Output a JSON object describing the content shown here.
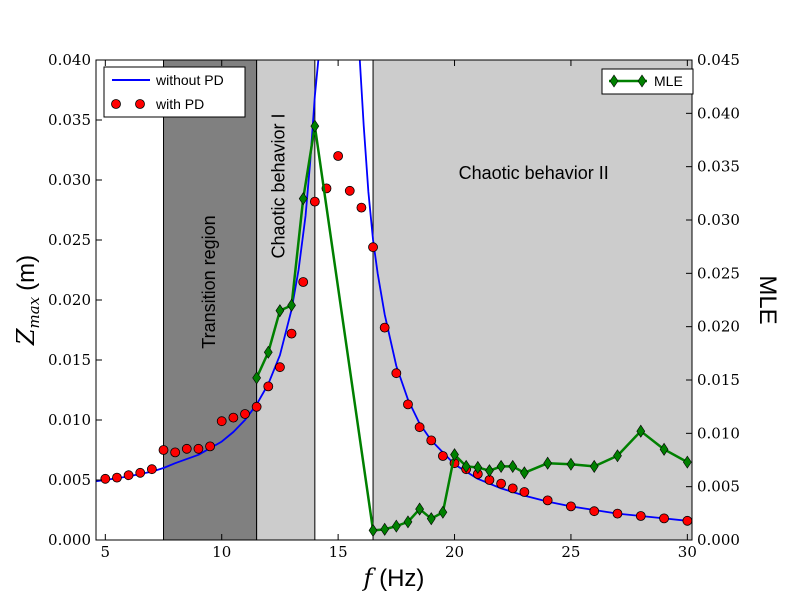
{
  "chart_data": {
    "type": "line",
    "title": "",
    "xlabel": "f (Hz)",
    "xlabel_parts": {
      "symbol": "f",
      "unit": "(Hz)"
    },
    "ylabel_left": "Zmax (m)",
    "ylabel_left_parts": {
      "symbol": "Z",
      "subscript": "max",
      "unit": "(m)"
    },
    "ylabel_right": "MLE",
    "xlim": [
      4.6,
      30.2
    ],
    "ylim_left": [
      0.0,
      0.04
    ],
    "ylim_right": [
      0.0,
      0.045
    ],
    "x_ticks": [
      5,
      10,
      15,
      20,
      25,
      30
    ],
    "y_left_ticks": [
      "0.000",
      "0.005",
      "0.010",
      "0.015",
      "0.020",
      "0.025",
      "0.030",
      "0.035",
      "0.040"
    ],
    "y_right_ticks": [
      "0.000",
      "0.005",
      "0.010",
      "0.015",
      "0.020",
      "0.025",
      "0.030",
      "0.035",
      "0.040",
      "0.045"
    ],
    "regions": [
      {
        "name": "Transition region",
        "x": [
          7.5,
          11.5
        ],
        "color": "#808080",
        "label_x": 9.5,
        "label_y": 0.0215,
        "rotated": true
      },
      {
        "name": "Chaotic behavior I",
        "x": [
          11.5,
          14.0
        ],
        "color": "#cccccc",
        "label_x": 12.5,
        "label_y": 0.0295,
        "rotated": true
      },
      {
        "name": "Chaotic behavior II",
        "x": [
          16.5,
          30.2
        ],
        "color": "#cccccc",
        "label_x": 23.4,
        "label_y": 0.0305,
        "rotated": false
      }
    ],
    "series": [
      {
        "name": "without PD",
        "axis": "left",
        "style": "line",
        "color": "#0000ff",
        "x": [
          4.6,
          5,
          6,
          7,
          7.5,
          8,
          9,
          10,
          10.5,
          11,
          11.5,
          12,
          12.5,
          13,
          13.3,
          13.6,
          13.8,
          14.0,
          14.2,
          15.9,
          16.1,
          16.3,
          16.5,
          16.7,
          17,
          17.5,
          18,
          18.5,
          19,
          20,
          21,
          22,
          23,
          24,
          25,
          26,
          27,
          28,
          29,
          30
        ],
        "values": [
          0.0049,
          0.005,
          0.0053,
          0.0057,
          0.006,
          0.0064,
          0.0071,
          0.0082,
          0.009,
          0.01,
          0.0113,
          0.013,
          0.0154,
          0.0192,
          0.0225,
          0.027,
          0.0315,
          0.037,
          0.041,
          0.041,
          0.0345,
          0.029,
          0.025,
          0.0222,
          0.0188,
          0.0145,
          0.0117,
          0.0097,
          0.0083,
          0.0063,
          0.0051,
          0.0043,
          0.0037,
          0.0032,
          0.0028,
          0.0025,
          0.0022,
          0.002,
          0.0018,
          0.0016
        ]
      },
      {
        "name": "with PD",
        "axis": "left",
        "style": "markers",
        "color": "#ff0000",
        "x": [
          5,
          5.5,
          6,
          6.5,
          7,
          7.5,
          8,
          8.5,
          9,
          9.5,
          10,
          10.5,
          11,
          11.5,
          12,
          12.5,
          13,
          13.5,
          14,
          14.5,
          15,
          15.5,
          16,
          16.5,
          17,
          17.5,
          18,
          18.5,
          19,
          19.5,
          20,
          20.5,
          21,
          21.5,
          22,
          22.5,
          23,
          24,
          25,
          26,
          27,
          28,
          29,
          30
        ],
        "values": [
          0.0051,
          0.0052,
          0.0054,
          0.0056,
          0.0059,
          0.0075,
          0.0073,
          0.0076,
          0.0076,
          0.0078,
          0.0099,
          0.0102,
          0.0105,
          0.0111,
          0.0128,
          0.0144,
          0.0172,
          0.0215,
          0.0282,
          0.0293,
          0.032,
          0.0291,
          0.0277,
          0.0244,
          0.0177,
          0.0139,
          0.0113,
          0.0094,
          0.0083,
          0.007,
          0.0064,
          0.0059,
          0.0055,
          0.005,
          0.0047,
          0.0043,
          0.004,
          0.0033,
          0.0028,
          0.0024,
          0.0022,
          0.002,
          0.0018,
          0.0016
        ]
      },
      {
        "name": "MLE",
        "axis": "right",
        "style": "line+diamond",
        "color": "#008000",
        "x": [
          11.5,
          12,
          12.5,
          13,
          13.5,
          14,
          16.5,
          17,
          17.5,
          18,
          18.5,
          19,
          19.5,
          20,
          20.5,
          21,
          21.5,
          22,
          22.5,
          23,
          24,
          25,
          26,
          27,
          28,
          29,
          30
        ],
        "values": [
          0.0152,
          0.0176,
          0.0215,
          0.022,
          0.032,
          0.0388,
          0.0009,
          0.001,
          0.0013,
          0.0017,
          0.0029,
          0.002,
          0.0026,
          0.008,
          0.0069,
          0.0068,
          0.0065,
          0.0069,
          0.0069,
          0.0063,
          0.0072,
          0.0071,
          0.0069,
          0.0079,
          0.0102,
          0.0085,
          0.0073
        ]
      }
    ],
    "legend": {
      "left": {
        "placement": "top-left",
        "entries": [
          "without PD",
          "with PD"
        ]
      },
      "right": {
        "placement": "top-right",
        "entries": [
          "MLE"
        ]
      }
    }
  }
}
